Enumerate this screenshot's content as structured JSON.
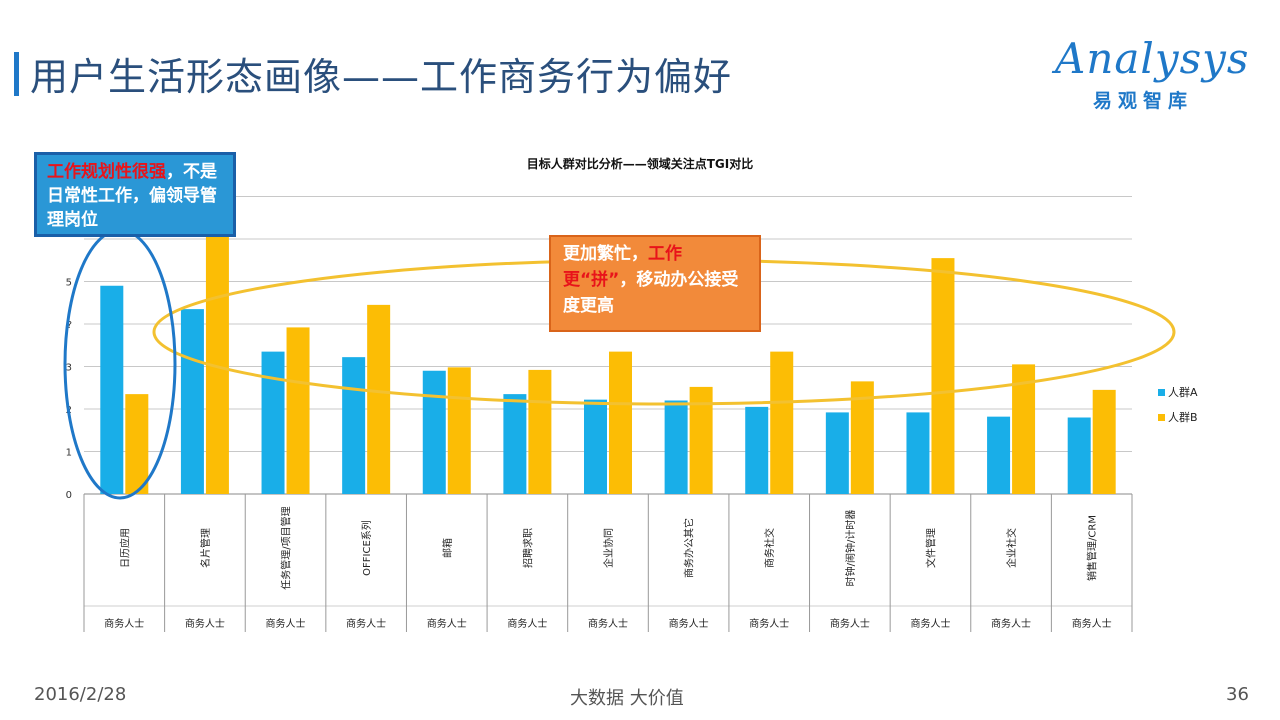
{
  "header": {
    "title": "用户生活形态画像——工作商务行为偏好"
  },
  "logo": {
    "brand": "Analysys",
    "sub": "易观智库"
  },
  "callouts": {
    "left": {
      "highlight": "工作规划性很强",
      "rest": "，不是日常性工作，偏领导管理岗位"
    },
    "mid": {
      "part1": "更加繁忙，",
      "highlight": "工作更“拼”",
      "part2": "，移动办公接受度更高"
    }
  },
  "footer": {
    "date": "2016/2/28",
    "center": "大数据    大价值",
    "page": "36"
  },
  "colors": {
    "seriesA": "#19aee8",
    "seriesB": "#fcbd05",
    "ellipseLeft": "#1f78c8",
    "ellipseMid": "#f3c130"
  },
  "chart_data": {
    "type": "bar",
    "title": "目标人群对比分析——领域关注点TGI对比",
    "categories": [
      "日历应用",
      "名片管理",
      "任务管理/项目管理",
      "OFFICE系列",
      "邮箱",
      "招聘求职",
      "企业协同",
      "商务办公其它",
      "商务社交",
      "时钟/闹钟/计时器",
      "文件管理",
      "企业社交",
      "销售管理/CRM"
    ],
    "group_label": "商务人士",
    "series": [
      {
        "name": "人群A",
        "values": [
          4.9,
          4.35,
          3.35,
          3.22,
          2.9,
          2.35,
          2.22,
          2.2,
          2.05,
          1.92,
          1.92,
          1.82,
          1.8
        ]
      },
      {
        "name": "人群B",
        "values": [
          2.35,
          6.1,
          3.92,
          4.45,
          2.98,
          2.92,
          3.35,
          2.52,
          3.35,
          2.65,
          5.55,
          3.05,
          2.45
        ]
      }
    ],
    "ytick_labels": [
      "0",
      "1",
      "2",
      "3",
      "?",
      "5"
    ],
    "ylim": [
      0,
      7
    ],
    "grid": true,
    "legend_position": "right"
  }
}
